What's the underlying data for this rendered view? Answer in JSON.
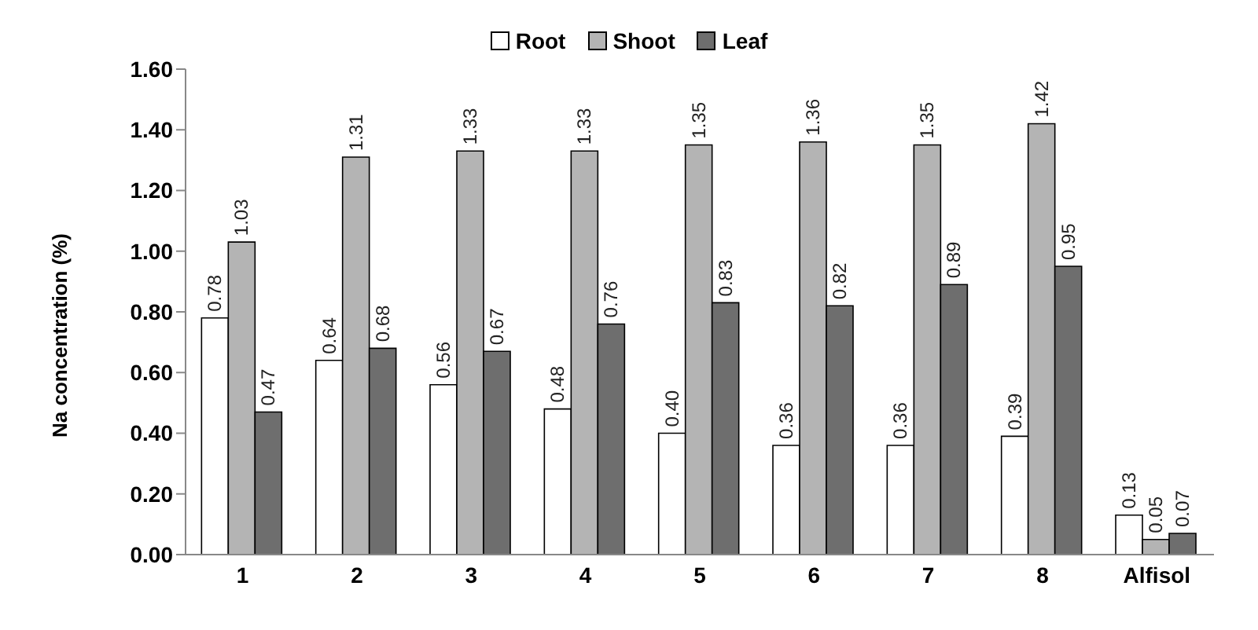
{
  "chart_data": {
    "type": "bar",
    "ylabel": "Na concentration (%)",
    "categories": [
      "1",
      "2",
      "3",
      "4",
      "5",
      "6",
      "7",
      "8",
      "Alfisol"
    ],
    "series": [
      {
        "name": "Root",
        "color": "#ffffff",
        "values": [
          0.78,
          0.64,
          0.56,
          0.48,
          0.4,
          0.36,
          0.36,
          0.39,
          0.13
        ],
        "value_labels": [
          "0.78",
          "0.64",
          "0.56",
          "0.48",
          "0.40",
          "0.36",
          "0.36",
          "0.39",
          "0.13"
        ]
      },
      {
        "name": "Shoot",
        "color": "#b4b4b4",
        "values": [
          1.03,
          1.31,
          1.33,
          1.33,
          1.35,
          1.36,
          1.35,
          1.42,
          0.05
        ],
        "value_labels": [
          "1.03",
          "1.31",
          "1.33",
          "1.33",
          "1.35",
          "1.36",
          "1.35",
          "1.42",
          "0.05"
        ]
      },
      {
        "name": "Leaf",
        "color": "#6e6e6e",
        "values": [
          0.47,
          0.68,
          0.67,
          0.76,
          0.83,
          0.82,
          0.89,
          0.95,
          0.07
        ],
        "value_labels": [
          "0.47",
          "0.68",
          "0.67",
          "0.76",
          "0.83",
          "0.82",
          "0.89",
          "0.95",
          "0.07"
        ]
      }
    ],
    "ylim": [
      0,
      1.6
    ],
    "yticks": [
      {
        "value": 0,
        "label": "0.00"
      },
      {
        "value": 0.2,
        "label": "0.20"
      },
      {
        "value": 0.4,
        "label": "0.40"
      },
      {
        "value": 0.6,
        "label": "0.60"
      },
      {
        "value": 0.8,
        "label": "0.80"
      },
      {
        "value": 1,
        "label": "1.00"
      },
      {
        "value": 1.2,
        "label": "1.20"
      },
      {
        "value": 1.4,
        "label": "1.40"
      },
      {
        "value": 1.6,
        "label": "1.60"
      }
    ],
    "grid": false,
    "legend": "top"
  }
}
